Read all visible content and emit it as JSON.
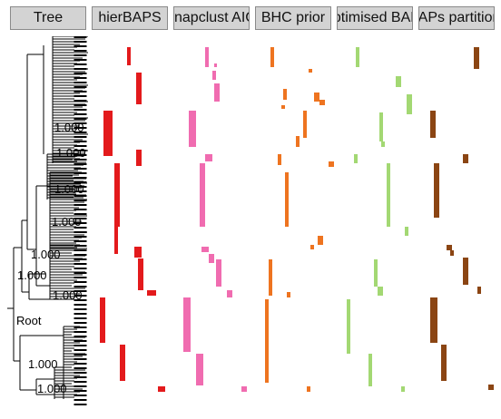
{
  "columns": [
    {
      "key": "tree",
      "label": "Tree"
    },
    {
      "key": "hierbaps",
      "label": "hierBAPS",
      "color": "#e31a1c"
    },
    {
      "key": "snapclust",
      "label": "snapclust AIC",
      "color": "#f06cb0"
    },
    {
      "key": "bhc",
      "label": "BHC prior",
      "color": "#ee7420"
    },
    {
      "key": "optimised",
      "label": "optimised BAPs",
      "color": "#a3d873"
    },
    {
      "key": "partition",
      "label": "BAPs partition",
      "color": "#8b4513"
    }
  ],
  "tree": {
    "root_label": "Root",
    "support_labels": [
      "1.000",
      "1.000",
      "1.000",
      "1.000",
      "1.000",
      "1.000",
      "1.000",
      "1.000",
      "1.000"
    ]
  }
}
